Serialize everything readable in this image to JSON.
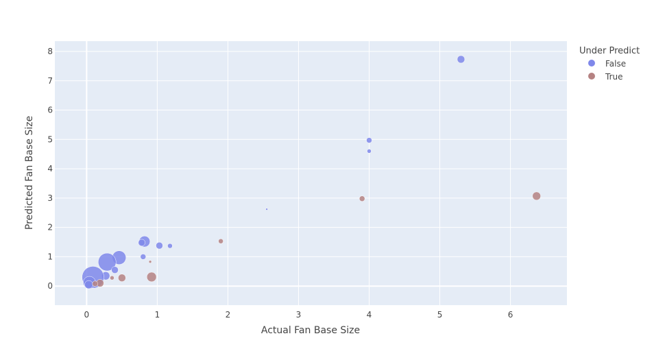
{
  "chart_data": {
    "type": "scatter",
    "xlabel": "Actual Fan Base Size",
    "ylabel": "Predicted Fan Base Size",
    "xlim": [
      -0.45,
      6.8
    ],
    "ylim": [
      -0.65,
      8.35
    ],
    "xticks": [
      0,
      1,
      2,
      3,
      4,
      5,
      6
    ],
    "yticks": [
      0,
      1,
      2,
      3,
      4,
      5,
      6,
      7,
      8
    ],
    "grid": true,
    "legend": {
      "title": "Under Predict",
      "placement": "top-right",
      "entries": [
        "False",
        "True"
      ]
    },
    "colors": {
      "False": "#7f88ea",
      "True": "#b58282",
      "plot_bg": "#e5ecf6",
      "grid": "#ffffff",
      "text": "#444444"
    },
    "series": [
      {
        "name": "False",
        "points": [
          {
            "x": 5.3,
            "y": 7.73,
            "size": 11
          },
          {
            "x": 4.0,
            "y": 4.97,
            "size": 8
          },
          {
            "x": 4.0,
            "y": 4.6,
            "size": 6
          },
          {
            "x": 2.55,
            "y": 2.62,
            "size": 3
          },
          {
            "x": 0.82,
            "y": 1.52,
            "size": 16
          },
          {
            "x": 0.78,
            "y": 1.48,
            "size": 10
          },
          {
            "x": 1.03,
            "y": 1.38,
            "size": 10
          },
          {
            "x": 1.18,
            "y": 1.37,
            "size": 7
          },
          {
            "x": 0.8,
            "y": 1.0,
            "size": 8
          },
          {
            "x": 0.46,
            "y": 0.97,
            "size": 20
          },
          {
            "x": 0.29,
            "y": 0.82,
            "size": 26
          },
          {
            "x": 0.4,
            "y": 0.55,
            "size": 10
          },
          {
            "x": 0.27,
            "y": 0.35,
            "size": 12
          },
          {
            "x": 0.09,
            "y": 0.3,
            "size": 32
          },
          {
            "x": 0.04,
            "y": 0.12,
            "size": 18
          },
          {
            "x": 0.03,
            "y": 0.05,
            "size": 12
          }
        ]
      },
      {
        "name": "True",
        "points": [
          {
            "x": 6.37,
            "y": 3.07,
            "size": 12
          },
          {
            "x": 3.9,
            "y": 2.98,
            "size": 8
          },
          {
            "x": 1.9,
            "y": 1.53,
            "size": 7
          },
          {
            "x": 0.9,
            "y": 0.83,
            "size": 4
          },
          {
            "x": 0.92,
            "y": 0.31,
            "size": 14
          },
          {
            "x": 0.5,
            "y": 0.28,
            "size": 11
          },
          {
            "x": 0.36,
            "y": 0.28,
            "size": 6
          },
          {
            "x": 0.19,
            "y": 0.1,
            "size": 11
          },
          {
            "x": 0.12,
            "y": 0.08,
            "size": 8
          }
        ]
      }
    ]
  }
}
